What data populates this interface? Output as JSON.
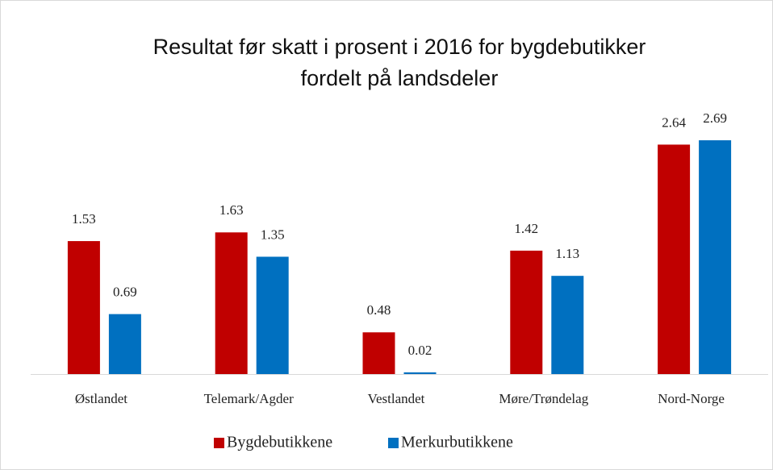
{
  "chart_data": {
    "type": "bar",
    "title": [
      "Resultat før skatt i prosent i 2016 for bygdebutikker",
      "fordelt på landsdeler"
    ],
    "categories": [
      "Østlandet",
      "Telemark/Agder",
      "Vestlandet",
      "Møre/Trøndelag",
      "Nord-Norge"
    ],
    "series": [
      {
        "name": "Bygdebutikkene",
        "color": "#c00000",
        "values": [
          1.53,
          1.63,
          0.48,
          1.42,
          2.64
        ]
      },
      {
        "name": "Merkurbutikkene",
        "color": "#0070c0",
        "values": [
          0.69,
          1.35,
          0.02,
          1.13,
          2.69
        ]
      }
    ],
    "legend": "bottom"
  }
}
